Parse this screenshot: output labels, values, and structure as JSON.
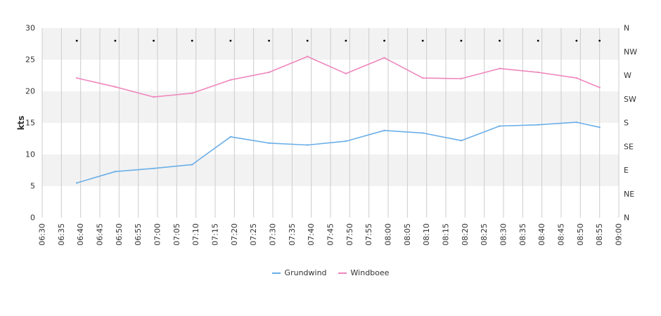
{
  "chart_data": {
    "type": "line",
    "ylabel": "kts",
    "ylim": [
      0,
      30
    ],
    "y_ticks": [
      0,
      5,
      10,
      15,
      20,
      25,
      30
    ],
    "direction_ticks": [
      "N",
      "NE",
      "E",
      "SE",
      "S",
      "SW",
      "W",
      "NW",
      "N"
    ],
    "x_ticks": [
      "06:30",
      "06:35",
      "06:40",
      "06:45",
      "06:50",
      "06:55",
      "07:00",
      "07:05",
      "07:10",
      "07:15",
      "07:20",
      "07:25",
      "07:30",
      "07:35",
      "07:40",
      "07:45",
      "07:50",
      "07:55",
      "08:00",
      "08:05",
      "08:10",
      "08:15",
      "08:20",
      "08:25",
      "08:30",
      "08:35",
      "08:40",
      "08:45",
      "08:50",
      "08:55",
      "09:00"
    ],
    "x": [
      "06:39",
      "06:49",
      "06:59",
      "07:09",
      "07:19",
      "07:29",
      "07:39",
      "07:49",
      "07:59",
      "08:09",
      "08:19",
      "08:29",
      "08:39",
      "08:49",
      "08:55"
    ],
    "series": [
      {
        "name": "Grundwind",
        "color": "#6aaee8",
        "values": [
          5.5,
          7.3,
          7.8,
          8.4,
          12.8,
          11.8,
          11.5,
          12.1,
          13.8,
          13.4,
          12.2,
          14.5,
          14.7,
          15.1,
          14.3
        ]
      },
      {
        "name": "Windboee",
        "color": "#ef86bd",
        "values": [
          22.1,
          20.7,
          19.1,
          19.7,
          21.8,
          23.0,
          25.5,
          22.8,
          25.3,
          22.1,
          22.0,
          23.6,
          23.0,
          22.1,
          20.6
        ]
      }
    ],
    "direction_marker_times": [
      "06:39",
      "06:49",
      "06:59",
      "07:09",
      "07:19",
      "07:29",
      "07:39",
      "07:49",
      "07:59",
      "08:09",
      "08:19",
      "08:29",
      "08:39",
      "08:49",
      "08:55"
    ],
    "direction_marker_level": 28,
    "grid": true,
    "legend_position": "bottom-center",
    "band_color": "#f2f2f2",
    "grid_color": "#cccccc"
  }
}
